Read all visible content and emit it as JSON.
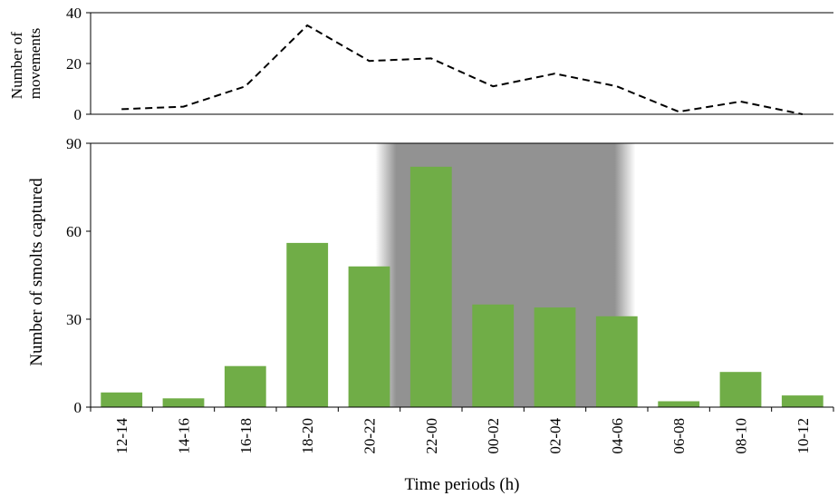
{
  "chart_data": [
    {
      "type": "line",
      "categories": [
        "12-14",
        "14-16",
        "16-18",
        "18-20",
        "20-22",
        "22-00",
        "00-02",
        "02-04",
        "04-06",
        "06-08",
        "08-10",
        "10-12"
      ],
      "series": [
        {
          "values": [
            2,
            3,
            11,
            35,
            21,
            22,
            11,
            16,
            11,
            1,
            5,
            0
          ],
          "style": "dashed",
          "color": "#000000"
        }
      ],
      "ylabel": "Number of movements",
      "ylabel_lines": [
        "Number of",
        "movements"
      ],
      "ylim": [
        0,
        40
      ],
      "yticks": [
        0,
        20,
        40
      ],
      "grid": false
    },
    {
      "type": "bar",
      "categories": [
        "12-14",
        "14-16",
        "16-18",
        "18-20",
        "20-22",
        "22-00",
        "00-02",
        "02-04",
        "04-06",
        "06-08",
        "08-10",
        "10-12"
      ],
      "values": [
        5,
        3,
        14,
        56,
        48,
        82,
        35,
        34,
        31,
        2,
        12,
        4
      ],
      "bar_color": "#70ad47",
      "shaded_range": {
        "from": "22-00",
        "to": "04-06",
        "color": "#8c8c8c"
      },
      "xlabel": "Time periods (h)",
      "ylabel": "Number of smolts captured",
      "ylim": [
        0,
        90
      ],
      "yticks": [
        0,
        30,
        60,
        90
      ],
      "grid": false
    }
  ]
}
